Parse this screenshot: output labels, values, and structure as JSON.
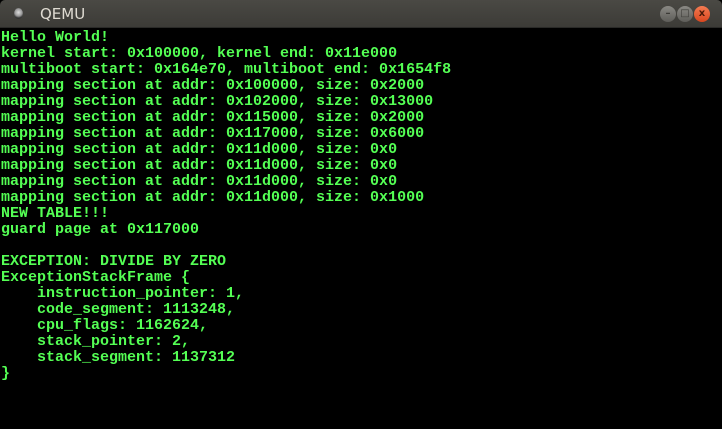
{
  "window": {
    "title": "QEMU",
    "icon": "qemu-app-icon",
    "buttons": {
      "minimize": "–",
      "maximize": "□",
      "close": "x"
    }
  },
  "console": {
    "color": "#54ff54",
    "lines": [
      "Hello World!",
      "kernel start: 0x100000, kernel end: 0x11e000",
      "multiboot start: 0x164e70, multiboot end: 0x1654f8",
      "mapping section at addr: 0x100000, size: 0x2000",
      "mapping section at addr: 0x102000, size: 0x13000",
      "mapping section at addr: 0x115000, size: 0x2000",
      "mapping section at addr: 0x117000, size: 0x6000",
      "mapping section at addr: 0x11d000, size: 0x0",
      "mapping section at addr: 0x11d000, size: 0x0",
      "mapping section at addr: 0x11d000, size: 0x0",
      "mapping section at addr: 0x11d000, size: 0x1000",
      "NEW TABLE!!!",
      "guard page at 0x117000",
      "",
      "EXCEPTION: DIVIDE BY ZERO",
      "ExceptionStackFrame {",
      "    instruction_pointer: 1,",
      "    code_segment: 1113248,",
      "    cpu_flags: 1162624,",
      "    stack_pointer: 2,",
      "    stack_segment: 1137312",
      "}"
    ]
  }
}
